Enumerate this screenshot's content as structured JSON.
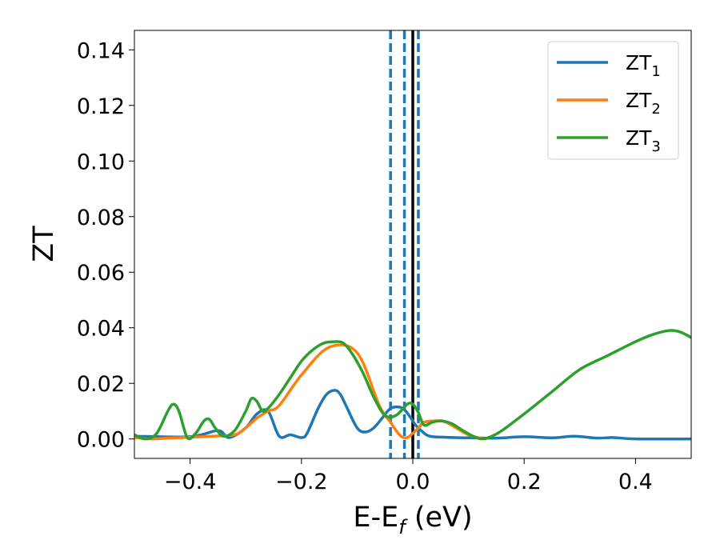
{
  "chart_data": {
    "type": "line",
    "title": "",
    "xlabel": "E-E",
    "xlabel_subscript": "f",
    "xlabel_unit": " (eV)",
    "ylabel": "ZT",
    "xlim": [
      -0.5,
      0.5
    ],
    "ylim": [
      -0.007,
      0.147
    ],
    "x_ticks": [
      -0.4,
      -0.2,
      0.0,
      0.2,
      0.4
    ],
    "x_tick_labels": [
      "−0.4",
      "−0.2",
      "0.0",
      "0.2",
      "0.4"
    ],
    "y_ticks": [
      0.0,
      0.02,
      0.04,
      0.06,
      0.08,
      0.1,
      0.12,
      0.14
    ],
    "y_tick_labels": [
      "0.00",
      "0.02",
      "0.04",
      "0.06",
      "0.08",
      "0.10",
      "0.12",
      "0.14"
    ],
    "grid": false,
    "legend_position": "top-right",
    "vertical_lines": [
      {
        "x": -0.04,
        "style": "dashed",
        "color": "#1f77b4"
      },
      {
        "x": -0.015,
        "style": "dashed",
        "color": "#1f77b4"
      },
      {
        "x": 0.01,
        "style": "dashed",
        "color": "#1f77b4"
      },
      {
        "x": 0.0,
        "style": "solid",
        "color": "#000000"
      }
    ],
    "series": [
      {
        "name": "ZT",
        "subscript": "1",
        "color": "#1f77b4",
        "x": [
          -0.5,
          -0.4,
          -0.35,
          -0.33,
          -0.3,
          -0.28,
          -0.26,
          -0.24,
          -0.22,
          -0.2,
          -0.19,
          -0.17,
          -0.155,
          -0.14,
          -0.13,
          -0.12,
          -0.1,
          -0.085,
          -0.07,
          -0.055,
          -0.04,
          -0.025,
          -0.015,
          -0.005,
          0.005,
          0.015,
          0.03,
          0.06,
          0.1,
          0.15,
          0.2,
          0.25,
          0.29,
          0.33,
          0.36,
          0.4,
          0.5
        ],
        "y": [
          0.001,
          0.0008,
          0.003,
          0.0005,
          0.004,
          0.009,
          0.01,
          0.001,
          0.0015,
          0.0005,
          0.002,
          0.011,
          0.016,
          0.0175,
          0.016,
          0.012,
          0.004,
          0.0025,
          0.004,
          0.0075,
          0.011,
          0.0115,
          0.0105,
          0.008,
          0.005,
          0.003,
          0.001,
          0.0006,
          0.0004,
          0.0003,
          0.0008,
          0.0004,
          0.001,
          0.0003,
          0.0005,
          0.0,
          0.0
        ]
      },
      {
        "name": "ZT",
        "subscript": "2",
        "color": "#ff7f0e",
        "x": [
          -0.5,
          -0.47,
          -0.44,
          -0.4,
          -0.36,
          -0.32,
          -0.3,
          -0.28,
          -0.26,
          -0.24,
          -0.2,
          -0.15,
          -0.1,
          -0.06,
          -0.04,
          -0.03,
          -0.02,
          -0.01,
          0.0,
          0.01,
          0.02,
          0.04,
          0.06,
          0.1,
          0.13
        ],
        "y": [
          0.0005,
          0.0,
          0.0003,
          0.0006,
          0.001,
          0.0015,
          0.004,
          0.0075,
          0.01,
          0.012,
          0.023,
          0.033,
          0.031,
          0.012,
          0.006,
          0.003,
          0.0008,
          0.0005,
          0.002,
          0.004,
          0.006,
          0.0065,
          0.006,
          0.0015,
          0.0
        ]
      },
      {
        "name": "ZT",
        "subscript": "3",
        "color": "#2ca02c",
        "x": [
          -0.5,
          -0.48,
          -0.46,
          -0.44,
          -0.43,
          -0.42,
          -0.405,
          -0.39,
          -0.375,
          -0.365,
          -0.355,
          -0.34,
          -0.32,
          -0.3,
          -0.29,
          -0.28,
          -0.27,
          -0.26,
          -0.24,
          -0.22,
          -0.2,
          -0.18,
          -0.16,
          -0.14,
          -0.125,
          -0.11,
          -0.09,
          -0.07,
          -0.05,
          -0.03,
          -0.01,
          0.0,
          0.01,
          0.02,
          0.035,
          0.05,
          0.07,
          0.09,
          0.11,
          0.125,
          0.14,
          0.16,
          0.2,
          0.25,
          0.3,
          0.35,
          0.4,
          0.43,
          0.46,
          0.48,
          0.5
        ],
        "y": [
          0.0015,
          0.0,
          0.002,
          0.01,
          0.0125,
          0.01,
          0.0005,
          0.002,
          0.0065,
          0.007,
          0.004,
          0.001,
          0.003,
          0.01,
          0.0145,
          0.0135,
          0.01,
          0.011,
          0.016,
          0.022,
          0.028,
          0.032,
          0.0345,
          0.035,
          0.0345,
          0.031,
          0.024,
          0.015,
          0.0085,
          0.0085,
          0.0125,
          0.0125,
          0.0095,
          0.005,
          0.006,
          0.0065,
          0.0055,
          0.003,
          0.0008,
          0.0,
          0.0008,
          0.003,
          0.009,
          0.017,
          0.025,
          0.03,
          0.035,
          0.0375,
          0.039,
          0.0385,
          0.0365
        ]
      }
    ]
  }
}
